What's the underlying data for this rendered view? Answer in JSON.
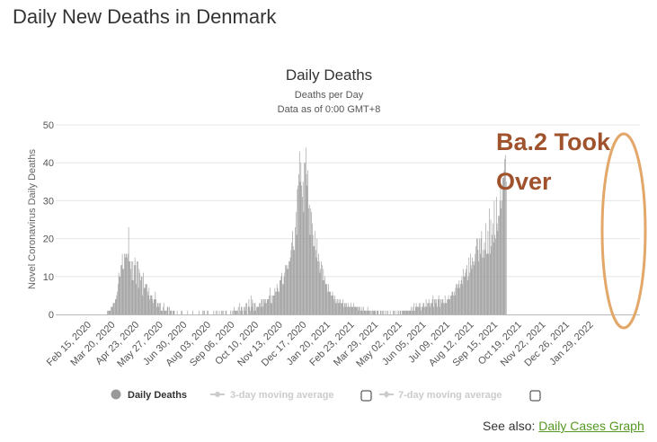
{
  "page_title": "Daily New Deaths in Denmark",
  "see_also": {
    "label": "See also:",
    "link_text": "Daily Cases Graph"
  },
  "colors": {
    "bar": "#999999",
    "annotation": "#A0522D",
    "circle": "#E3A769",
    "grid": "#e6e6e6",
    "legend_inactive": "#cccccc"
  },
  "chart_data": {
    "type": "bar",
    "title": "Daily Deaths",
    "subtitle_lines": [
      "Deaths per Day",
      "Data as of 0:00 GMT+8"
    ],
    "ylabel": "Novel Coronavirus Daily Deaths",
    "xlabel": "",
    "ylim": [
      0,
      50
    ],
    "yticks": [
      0,
      10,
      20,
      30,
      40,
      50
    ],
    "grid": true,
    "x_tick_labels": [
      "Feb 15, 2020",
      "Mar 20, 2020",
      "Apr 23, 2020",
      "May 27, 2020",
      "Jun 30, 2020",
      "Aug 03, 2020",
      "Sep 06, 2020",
      "Oct 10, 2020",
      "Nov 13, 2020",
      "Dec 17, 2020",
      "Jan 20, 2021",
      "Feb 23, 2021",
      "Mar 29, 2021",
      "May 02, 2021",
      "Jun 05, 2021",
      "Jul 09, 2021",
      "Aug 12, 2021",
      "Sep 15, 2021",
      "Oct 19, 2021",
      "Nov 22, 2021",
      "Dec 26, 2021",
      "Jan 29, 2022"
    ],
    "series": [
      {
        "name": "Daily Deaths",
        "start_date": "Feb 15, 2020",
        "interval": "1 day",
        "values": [
          0,
          0,
          0,
          0,
          0,
          0,
          0,
          0,
          0,
          0,
          0,
          0,
          0,
          0,
          0,
          0,
          0,
          0,
          0,
          0,
          0,
          0,
          0,
          0,
          0,
          0,
          1,
          1,
          1,
          1,
          1,
          2,
          2,
          2,
          3,
          3,
          3,
          4,
          4,
          5,
          6,
          8,
          11,
          10,
          10,
          13,
          13,
          16,
          12,
          12,
          16,
          15,
          16,
          16,
          15,
          16,
          23,
          14,
          14,
          12,
          14,
          9,
          14,
          9,
          13,
          15,
          13,
          8,
          14,
          14,
          7,
          12,
          11,
          9,
          10,
          10,
          5,
          11,
          7,
          7,
          8,
          8,
          8,
          6,
          5,
          7,
          4,
          5,
          5,
          5,
          4,
          3,
          4,
          4,
          6,
          4,
          2,
          3,
          3,
          2,
          3,
          3,
          1,
          1,
          1,
          2,
          3,
          1,
          1,
          1,
          1,
          2,
          2,
          0,
          2,
          1,
          1,
          1,
          0,
          1,
          1,
          1,
          0,
          0,
          0,
          1,
          0,
          0,
          0,
          0,
          0,
          1,
          1,
          0,
          0,
          0,
          0,
          0,
          0,
          0,
          1,
          0,
          0,
          0,
          0,
          0,
          0,
          1,
          0,
          0,
          0,
          0,
          0,
          0,
          0,
          0,
          1,
          0,
          0,
          0,
          0,
          1,
          0,
          1,
          1,
          0,
          0,
          0,
          1,
          1,
          0,
          0,
          0,
          0,
          0,
          0,
          0,
          1,
          0,
          0,
          1,
          0,
          1,
          0,
          0,
          1,
          0,
          0,
          1,
          1,
          0,
          1,
          0,
          0,
          1,
          1,
          0,
          0,
          0,
          0,
          0,
          1,
          0,
          1,
          0,
          1,
          2,
          1,
          1,
          1,
          1,
          1,
          2,
          0,
          3,
          1,
          2,
          2,
          1,
          0,
          2,
          2,
          1,
          3,
          3,
          0,
          2,
          4,
          2,
          1,
          5,
          2,
          4,
          3,
          1,
          3,
          3,
          1,
          2,
          2,
          2,
          2,
          3,
          3,
          2,
          4,
          4,
          2,
          4,
          4,
          3,
          4,
          3,
          4,
          4,
          4,
          5,
          7,
          3,
          5,
          3,
          5,
          5,
          5,
          7,
          6,
          6,
          8,
          7,
          6,
          6,
          9,
          9,
          10,
          11,
          8,
          8,
          10,
          11,
          13,
          13,
          12,
          13,
          12,
          14,
          14,
          15,
          17,
          19,
          22,
          18,
          17,
          17,
          23,
          27,
          21,
          33,
          34,
          37,
          43,
          35,
          40,
          34,
          31,
          35,
          27,
          40,
          40,
          44,
          37,
          34,
          38,
          28,
          29,
          21,
          28,
          27,
          24,
          21,
          18,
          18,
          22,
          17,
          15,
          20,
          14,
          16,
          14,
          11,
          12,
          14,
          13,
          9,
          12,
          9,
          10,
          8,
          8,
          8,
          6,
          8,
          6,
          6,
          6,
          5,
          5,
          6,
          5,
          4,
          5,
          3,
          4,
          3,
          4,
          3,
          4,
          3,
          4,
          3,
          3,
          3,
          4,
          2,
          3,
          3,
          2,
          3,
          2,
          3,
          2,
          2,
          2,
          3,
          2,
          2,
          2,
          3,
          2,
          2,
          2,
          2,
          2,
          2,
          1,
          2,
          2,
          1,
          1,
          2,
          1,
          2,
          1,
          1,
          1,
          1,
          1,
          2,
          1,
          1,
          1,
          1,
          0,
          1,
          1,
          1,
          1,
          1,
          1,
          0,
          1,
          1,
          1,
          0,
          0,
          1,
          1,
          0,
          1,
          1,
          0,
          0,
          1,
          0,
          1,
          0,
          1,
          0,
          0,
          1,
          0,
          0,
          0,
          1,
          1,
          0,
          1,
          0,
          0,
          1,
          0,
          1,
          0,
          1,
          1,
          0,
          1,
          1,
          1,
          1,
          1,
          1,
          1,
          1,
          1,
          1,
          1,
          1,
          1,
          2,
          1,
          2,
          1,
          3,
          1,
          2,
          3,
          2,
          2,
          2,
          3,
          2,
          3,
          1,
          2,
          2,
          3,
          3,
          2,
          2,
          4,
          2,
          3,
          3,
          4,
          3,
          2,
          3,
          3,
          4,
          5,
          2,
          4,
          4,
          3,
          4,
          2,
          4,
          5,
          4,
          2,
          4,
          3,
          4,
          4,
          3,
          3,
          5,
          3,
          3,
          4,
          4,
          5,
          4,
          4,
          5,
          5,
          6,
          6,
          5,
          6,
          5,
          7,
          8,
          8,
          7,
          8,
          9,
          7,
          8,
          9,
          10,
          8,
          12,
          10,
          10,
          11,
          12,
          13,
          9,
          10,
          15,
          11,
          16,
          13,
          12,
          15,
          14,
          13,
          14,
          16,
          18,
          20,
          20,
          17,
          14,
          20,
          16,
          20,
          22,
          15,
          17,
          15,
          19,
          17,
          24,
          16,
          16,
          22,
          16,
          28,
          16,
          25,
          18,
          21,
          24,
          19,
          30,
          21,
          20,
          31,
          24,
          22,
          26,
          26,
          30,
          34,
          28,
          30,
          36,
          36,
          38,
          41,
          42,
          35
        ]
      }
    ],
    "legend": [
      {
        "name": "Daily Deaths",
        "active": true
      },
      {
        "name": "3-day moving average",
        "active": false
      },
      {
        "name": "7-day moving average",
        "active": false
      }
    ],
    "annotations": [
      {
        "text_lines": [
          "Ba.2 Took",
          "Over"
        ]
      }
    ]
  }
}
